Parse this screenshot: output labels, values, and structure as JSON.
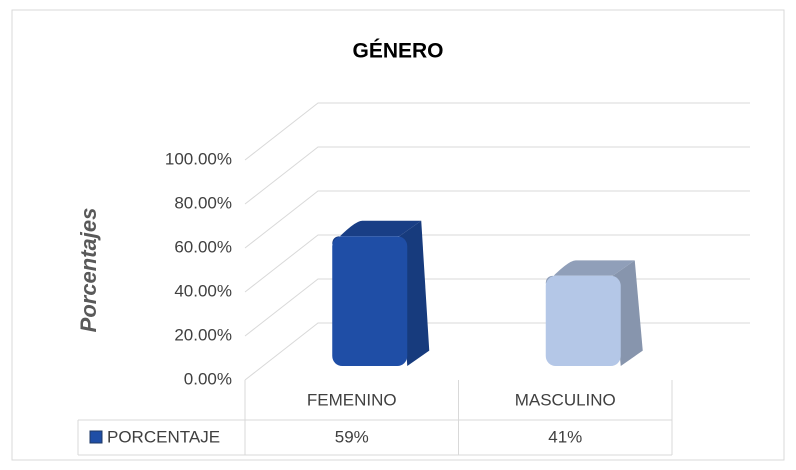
{
  "chart_data": {
    "type": "bar3d",
    "title": "GÉNERO",
    "y_label": "Porcentajes",
    "categories": [
      "FEMENINO",
      "MASCULINO"
    ],
    "series": [
      {
        "name": "PORCENTAJE",
        "color": "#1f4ea6",
        "colors": [
          "#1f4ea6",
          "#b4c7e7"
        ],
        "values": [
          59,
          41
        ],
        "value_labels": [
          "59%",
          "41%"
        ]
      }
    ],
    "ylim": [
      0,
      100
    ],
    "yticks": [
      {
        "value": 0,
        "label": "0.00%"
      },
      {
        "value": 20,
        "label": "20.00%"
      },
      {
        "value": 40,
        "label": "40.00%"
      },
      {
        "value": 60,
        "label": "60.00%"
      },
      {
        "value": 80,
        "label": "80.00%"
      },
      {
        "value": 100,
        "label": "100.00%"
      }
    ],
    "grid": true
  }
}
